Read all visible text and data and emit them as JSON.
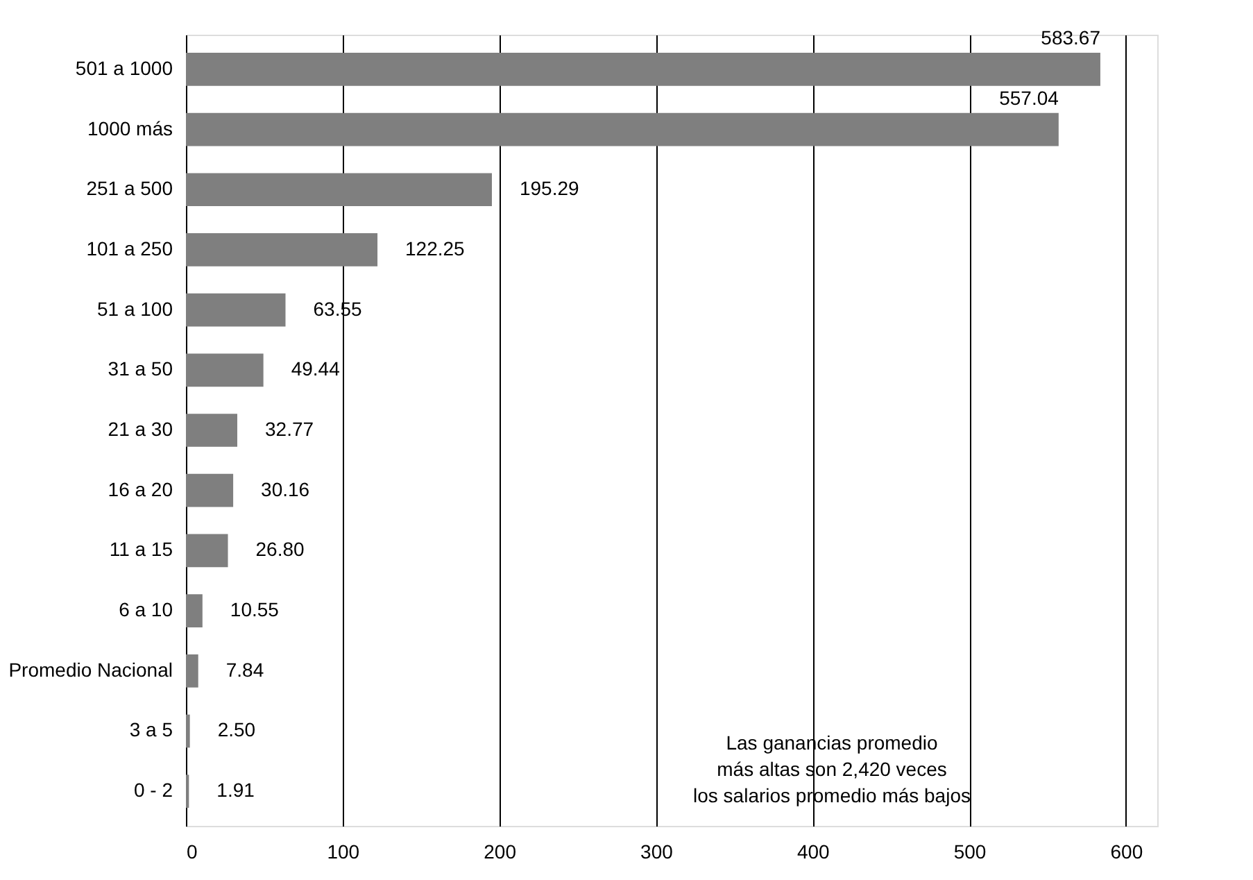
{
  "chart_data": {
    "type": "bar",
    "orientation": "horizontal",
    "categories": [
      "501 a 1000",
      "1000 más",
      "251 a 500",
      "101 a 250",
      "51 a 100",
      "31 a 50",
      "21 a 30",
      "16 a 20",
      "11 a 15",
      "6 a 10",
      "Promedio Nacional",
      "3 a 5",
      "0 - 2"
    ],
    "values": [
      583.67,
      557.04,
      195.29,
      122.25,
      63.55,
      49.44,
      32.77,
      30.16,
      26.8,
      10.55,
      7.84,
      2.5,
      1.91
    ],
    "value_labels": [
      "583.67",
      "557.04",
      "195.29",
      "122.25",
      "63.55",
      "49.44",
      "32.77",
      "30.16",
      "26.80",
      "10.55",
      "7.84",
      "2.50",
      "1.91"
    ],
    "color": "#7f7f7f",
    "xlim": [
      0,
      620
    ],
    "xticks": [
      0,
      100,
      200,
      300,
      400,
      500,
      600
    ],
    "grid": "x",
    "annotations": [
      "Las ganancias promedio más altas son 2,420 veces los salarios promedio más bajos"
    ]
  }
}
